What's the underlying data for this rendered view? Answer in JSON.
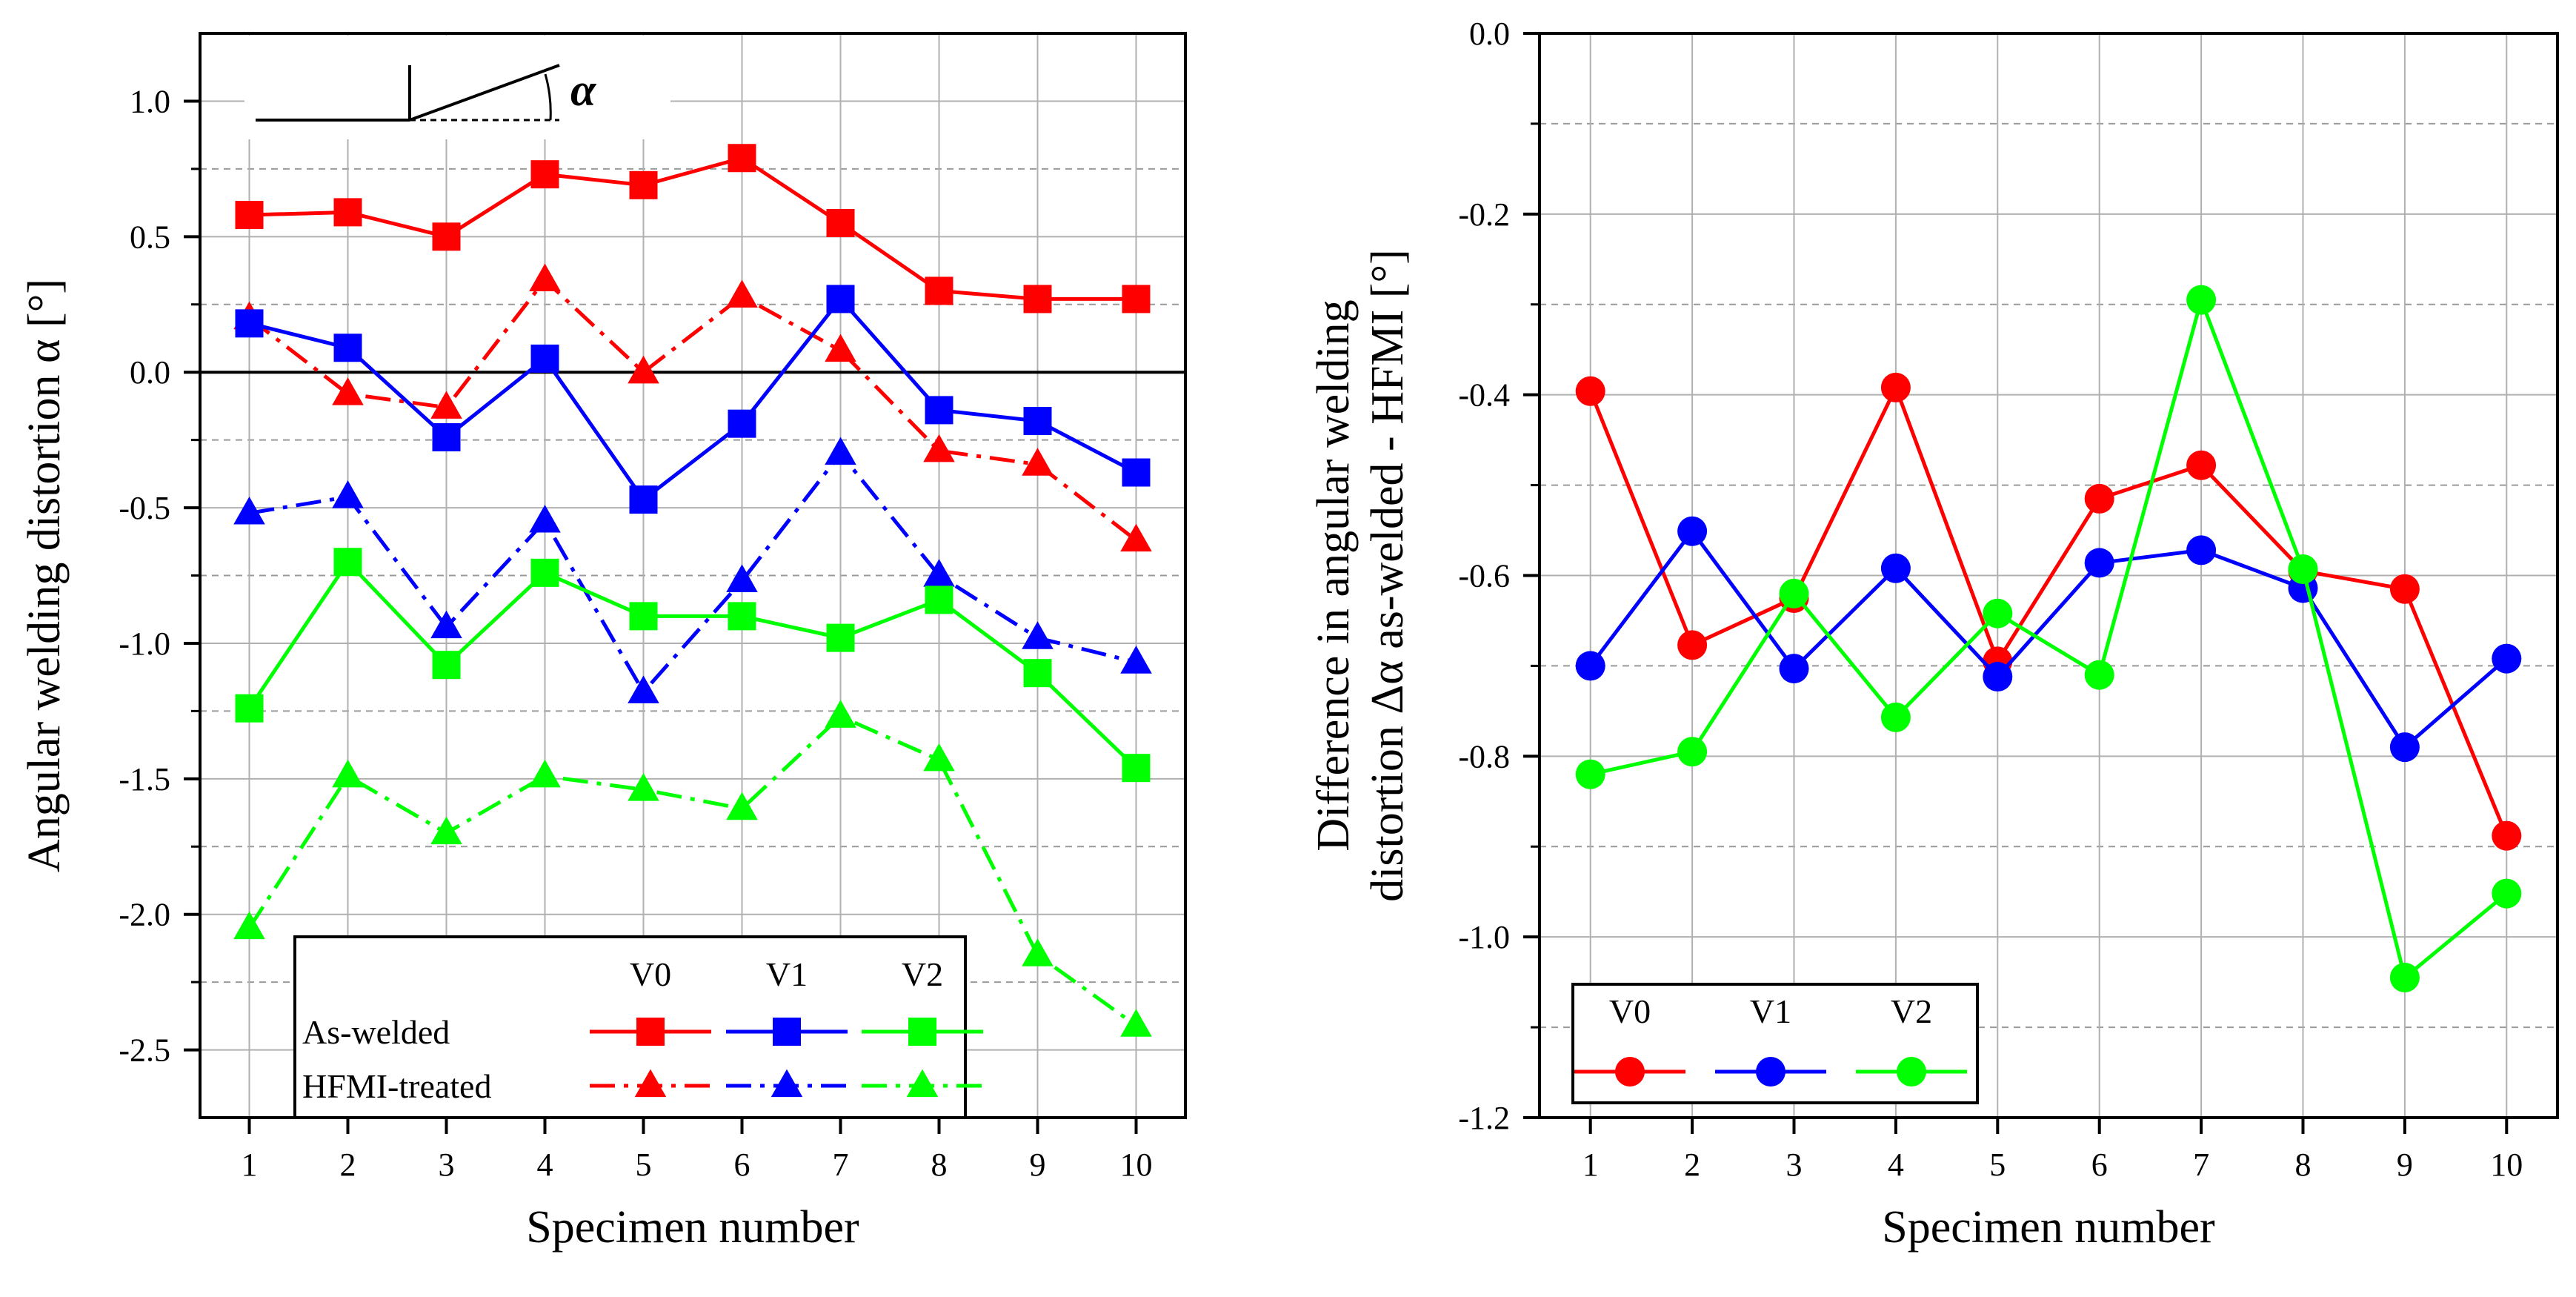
{
  "chart_data": [
    {
      "type": "line",
      "xlabel": "Specimen number",
      "ylabel": "Angular welding distortion α [°]",
      "x": [
        1,
        2,
        3,
        4,
        5,
        6,
        7,
        8,
        9,
        10
      ],
      "xlim": [
        0.5,
        10.5
      ],
      "ylim": [
        -2.75,
        1.25
      ],
      "yticks": [
        1.0,
        0.5,
        0.0,
        -0.5,
        -1.0,
        -1.5,
        -2.0,
        -2.5
      ],
      "ytick_labels": [
        "1.0",
        "0.5",
        "0.0",
        "-0.5",
        "-1.0",
        "-1.5",
        "-2.0",
        "-2.5"
      ],
      "minor_y_grid": [
        0.75,
        0.25,
        -0.25,
        -0.75,
        -1.25,
        -1.75,
        -2.25
      ],
      "grid": true,
      "zero_line": true,
      "inset_label": "α",
      "legend": {
        "placement": "bottom-left",
        "columns": [
          "V0",
          "V1",
          "V2"
        ],
        "rows": [
          "As-welded",
          "HFMI-treated"
        ]
      },
      "series": [
        {
          "variant": "V0",
          "state": "As-welded",
          "color": "#ff0000",
          "marker": "square",
          "dash": "solid",
          "values": [
            0.58,
            0.59,
            0.5,
            0.73,
            0.69,
            0.79,
            0.55,
            0.3,
            0.27,
            0.27
          ]
        },
        {
          "variant": "V0",
          "state": "HFMI-treated",
          "color": "#ff0000",
          "marker": "triangle",
          "dash": "dashdot",
          "values": [
            0.2,
            -0.08,
            -0.13,
            0.34,
            0.0,
            0.28,
            0.08,
            -0.29,
            -0.34,
            -0.62
          ]
        },
        {
          "variant": "V1",
          "state": "As-welded",
          "color": "#0000ff",
          "marker": "square",
          "dash": "solid",
          "values": [
            0.18,
            0.09,
            -0.24,
            0.05,
            -0.47,
            -0.19,
            0.27,
            -0.14,
            -0.18,
            -0.37
          ]
        },
        {
          "variant": "V1",
          "state": "HFMI-treated",
          "color": "#0000ff",
          "marker": "triangle",
          "dash": "dashdot",
          "values": [
            -0.52,
            -0.46,
            -0.94,
            -0.55,
            -1.18,
            -0.77,
            -0.3,
            -0.75,
            -0.98,
            -1.07
          ]
        },
        {
          "variant": "V2",
          "state": "As-welded",
          "color": "#00ff00",
          "marker": "square",
          "dash": "solid",
          "values": [
            -1.24,
            -0.7,
            -1.08,
            -0.74,
            -0.9,
            -0.9,
            -0.98,
            -0.84,
            -1.11,
            -1.46
          ]
        },
        {
          "variant": "V2",
          "state": "HFMI-treated",
          "color": "#00ff00",
          "marker": "triangle",
          "dash": "dashdot",
          "values": [
            -2.05,
            -1.49,
            -1.7,
            -1.49,
            -1.54,
            -1.61,
            -1.27,
            -1.43,
            -2.15,
            -2.41
          ]
        }
      ]
    },
    {
      "type": "line",
      "xlabel": "Specimen number",
      "ylabel_line1": "Difference in angular welding",
      "ylabel_line2": "distortion Δα as-welded - HFMI [°]",
      "x": [
        1,
        2,
        3,
        4,
        5,
        6,
        7,
        8,
        9,
        10
      ],
      "xlim": [
        0.5,
        10.5
      ],
      "ylim": [
        -1.2,
        0.0
      ],
      "yticks": [
        0.0,
        -0.2,
        -0.4,
        -0.6,
        -0.8,
        -1.0,
        -1.2
      ],
      "ytick_labels": [
        "0.0",
        "-0.2",
        "-0.4",
        "-0.6",
        "-0.8",
        "-1.0",
        "-1.2"
      ],
      "minor_y_grid": [
        -0.1,
        -0.3,
        -0.5,
        -0.7,
        -0.9,
        -1.1
      ],
      "grid": true,
      "legend": {
        "placement": "bottom-left",
        "columns": [
          "V0",
          "V1",
          "V2"
        ]
      },
      "series": [
        {
          "variant": "V0",
          "color": "#ff0000",
          "marker": "circle",
          "values": [
            -0.396,
            -0.677,
            -0.625,
            -0.392,
            -0.695,
            -0.515,
            -0.478,
            -0.595,
            -0.615,
            -0.888
          ]
        },
        {
          "variant": "V1",
          "color": "#0000ff",
          "marker": "circle",
          "values": [
            -0.7,
            -0.551,
            -0.703,
            -0.592,
            -0.712,
            -0.586,
            -0.572,
            -0.614,
            -0.79,
            -0.692
          ]
        },
        {
          "variant": "V2",
          "color": "#00ff00",
          "marker": "circle",
          "values": [
            -0.82,
            -0.795,
            -0.62,
            -0.757,
            -0.642,
            -0.71,
            -0.295,
            -0.593,
            -1.045,
            -0.952
          ]
        }
      ]
    }
  ]
}
